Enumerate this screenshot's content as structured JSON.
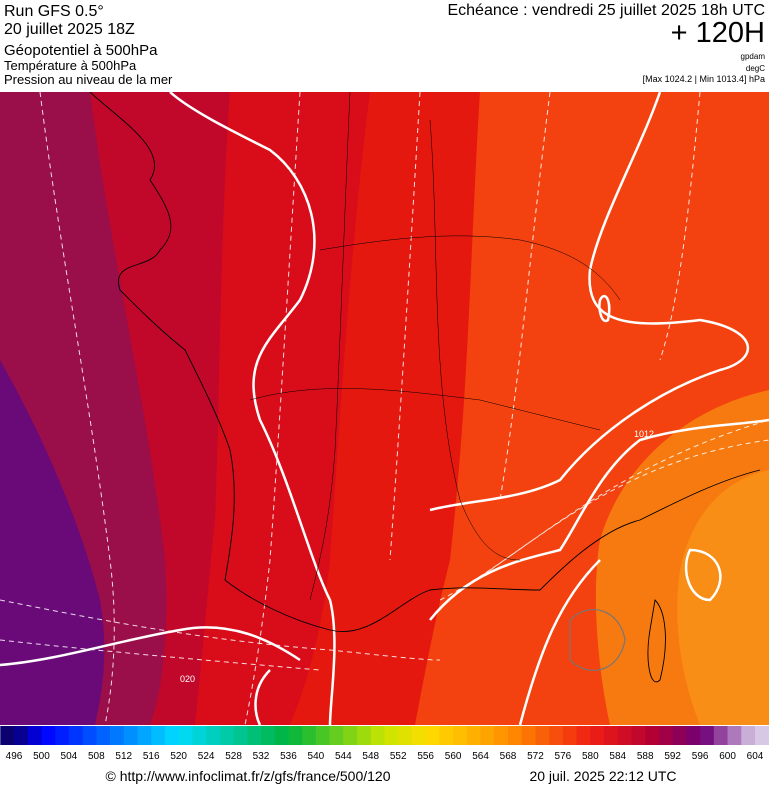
{
  "header": {
    "model": "Run GFS 0.5°",
    "run": "20 juillet 2025 18Z",
    "field1": "Géopotentiel à 500hPa",
    "field2": "Température à 500hPa",
    "field3": "Pression au niveau de la mer",
    "valid": "Echéance : vendredi 25 juillet 2025 18h UTC",
    "lead": "+ 120H",
    "unit1": "gpdam",
    "unit2": "degC",
    "range": "[Max 1024.2 | Min 1013.4] hPa"
  },
  "map": {
    "labels": [
      "020",
      "1012"
    ]
  },
  "colorbar": {
    "ticks": [
      496,
      500,
      504,
      508,
      512,
      516,
      520,
      524,
      528,
      532,
      536,
      540,
      544,
      548,
      552,
      556,
      560,
      564,
      568,
      572,
      576,
      580,
      584,
      588,
      592,
      596,
      600,
      604
    ]
  },
  "footer": {
    "source": "© http://www.infoclimat.fr/z/gfs/france/500/120",
    "generated": "20 juil. 2025 22:12 UTC"
  }
}
